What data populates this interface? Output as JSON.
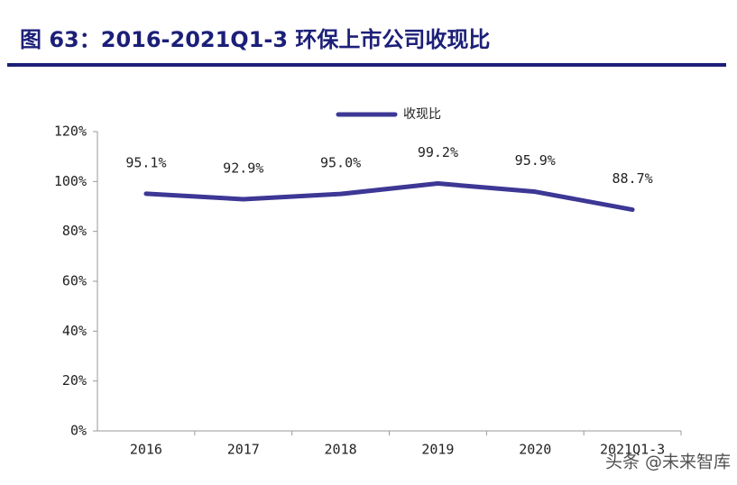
{
  "chart_data": {
    "type": "line",
    "title": "图 63：2016-2021Q1-3 环保上市公司收现比",
    "categories": [
      "2016",
      "2017",
      "2018",
      "2019",
      "2020",
      "2021Q1-3"
    ],
    "series": [
      {
        "name": "收现比",
        "color": "#3d3795",
        "values": [
          95.1,
          92.9,
          95.0,
          99.2,
          95.9,
          88.7
        ],
        "value_labels": [
          "95.1%",
          "92.9%",
          "95.0%",
          "99.2%",
          "95.9%",
          "88.7%"
        ]
      }
    ],
    "ylim": [
      0,
      120
    ],
    "yticks": [
      {
        "value": 0,
        "label": "0%"
      },
      {
        "value": 20,
        "label": "20%"
      },
      {
        "value": 40,
        "label": "40%"
      },
      {
        "value": 60,
        "label": "60%"
      },
      {
        "value": 80,
        "label": "80%"
      },
      {
        "value": 100,
        "label": "100%"
      },
      {
        "value": 120,
        "label": "120%"
      }
    ],
    "grid": false,
    "legend": "top",
    "watermark": "头条 @未来智库"
  }
}
